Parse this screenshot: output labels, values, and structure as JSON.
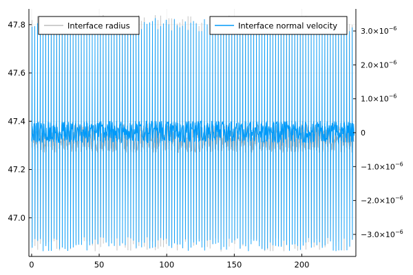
{
  "chart_data": {
    "type": "line",
    "grid": true,
    "x_axis": {
      "range": [
        -2,
        240
      ],
      "ticks": [
        0,
        50,
        100,
        150,
        200
      ],
      "tick_labels": [
        "0",
        "50",
        "100",
        "150",
        "200"
      ]
    },
    "y_left": {
      "range": [
        46.84,
        47.865
      ],
      "ticks": [
        47.0,
        47.2,
        47.4,
        47.6,
        47.8
      ],
      "tick_labels": [
        "47.0",
        "47.2",
        "47.4",
        "47.6",
        "47.8"
      ]
    },
    "y_right": {
      "range": [
        -3.65e-06,
        3.65e-06
      ],
      "ticks": [
        -3e-06,
        -2e-06,
        -1e-06,
        0,
        1e-06,
        2e-06,
        3e-06
      ],
      "tick_labels": [
        {
          "base": "−3.0×10",
          "exp": "−6"
        },
        {
          "base": "−2.0×10",
          "exp": "−6"
        },
        {
          "base": "−1.0×10",
          "exp": "−6"
        },
        {
          "base": "0",
          "exp": ""
        },
        {
          "base": "1.0×10",
          "exp": "−6"
        },
        {
          "base": "2.0×10",
          "exp": "−6"
        },
        {
          "base": "3.0×10",
          "exp": "−6"
        }
      ]
    },
    "series": [
      {
        "name": "Interface radius",
        "axis": "left",
        "color": "#bdbdbd",
        "x_start": 0,
        "x_end": 239,
        "oscillation_count": 118,
        "baseline": 47.33,
        "max": 47.84,
        "min": 46.86
      },
      {
        "name": "Interface normal velocity",
        "axis": "right",
        "color": "#009af9",
        "x_start": 0,
        "x_end": 239,
        "oscillation_count": 118,
        "baseline": 0.0,
        "band": [
          -3e-07,
          3.5e-07
        ],
        "max": 3.4e-06,
        "min": -3.5e-06
      }
    ],
    "legends": [
      {
        "placement": "top-left",
        "entries": [
          "Interface radius"
        ]
      },
      {
        "placement": "top-right",
        "entries": [
          "Interface normal velocity"
        ]
      }
    ]
  }
}
